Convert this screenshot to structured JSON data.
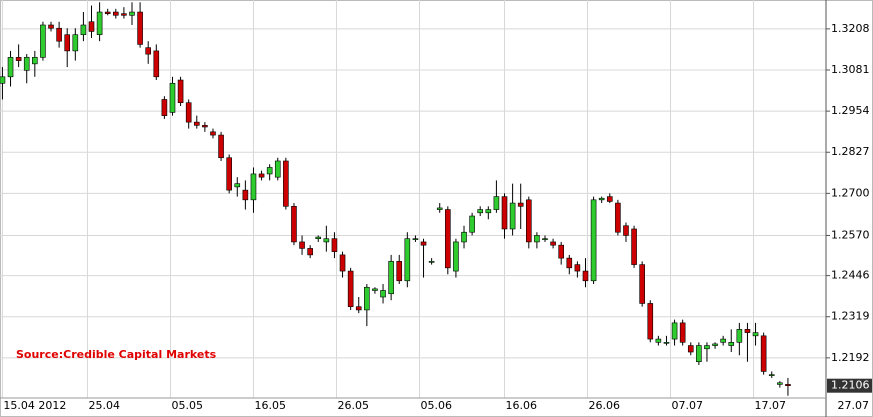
{
  "chart_data": {
    "type": "candlestick",
    "annotation": "Source:Credible Capital Markets",
    "up_color": "#2ecc2e",
    "down_color": "#cc0000",
    "grid": true,
    "ylim": [
      1.2068,
      1.3291
    ],
    "yticks": [
      1.2192,
      1.2319,
      1.2446,
      {
        "value": 1.257,
        "label": "1.2570"
      },
      {
        "value": 1.27,
        "label": "1.2700"
      },
      1.2827,
      1.2954,
      1.3081,
      1.3208
    ],
    "xlim": [
      -0.3,
      101.7
    ],
    "xticks": [
      {
        "value": 0,
        "label": "15.04 2012"
      },
      {
        "value": 10.5,
        "label": "25.04"
      },
      {
        "value": 20.75,
        "label": "05.05"
      },
      {
        "value": 31,
        "label": "16.05"
      },
      {
        "value": 41.25,
        "label": "26.05"
      },
      {
        "value": 51.5,
        "label": "05.06"
      },
      {
        "value": 62,
        "label": "16.06"
      },
      {
        "value": 72.25,
        "label": "26.06"
      },
      {
        "value": 82.5,
        "label": "07.07"
      },
      {
        "value": 92.75,
        "label": "17.07"
      },
      {
        "value": 103,
        "label": "27.07"
      }
    ],
    "open": [
      1.304,
      1.306,
      1.312,
      1.308,
      1.31,
      1.312,
      1.322,
      1.321,
      1.319,
      1.314,
      1.319,
      1.323,
      1.319,
      1.326,
      1.326,
      1.3255,
      1.325,
      1.326,
      1.315,
      1.314,
      1.299,
      1.295,
      1.305,
      1.298,
      1.292,
      1.291,
      1.289,
      1.288,
      1.281,
      1.272,
      1.271,
      1.268,
      1.276,
      1.276,
      1.275,
      1.28,
      1.266,
      1.255,
      1.253,
      1.256,
      1.255,
      1.256,
      1.251,
      1.246,
      1.235,
      1.234,
      1.24,
      1.238,
      1.239,
      1.249,
      1.243,
      1.256,
      1.255,
      1.249,
      1.265,
      1.265,
      1.246,
      1.255,
      1.258,
      1.264,
      1.264,
      1.265,
      1.269,
      1.259,
      1.267,
      1.268,
      1.255,
      1.256,
      1.255,
      1.254,
      1.25,
      1.248,
      1.246,
      1.243,
      1.268,
      1.269,
      1.267,
      1.26,
      1.259,
      1.248,
      1.236,
      1.224,
      1.224,
      1.225,
      1.23,
      1.223,
      1.218,
      1.222,
      1.223,
      1.224,
      1.223,
      1.224,
      1.228,
      1.226,
      1.226,
      1.214,
      1.211,
      1.211
    ],
    "high": [
      1.309,
      1.314,
      1.316,
      1.313,
      1.314,
      1.323,
      1.323,
      1.323,
      1.321,
      1.321,
      1.326,
      1.328,
      1.329,
      1.327,
      1.327,
      1.3275,
      1.329,
      1.329,
      1.317,
      1.316,
      1.3,
      1.306,
      1.306,
      1.299,
      1.294,
      1.292,
      1.29,
      1.289,
      1.282,
      1.275,
      1.274,
      1.278,
      1.277,
      1.279,
      1.281,
      1.281,
      1.267,
      1.257,
      1.254,
      1.257,
      1.26,
      1.258,
      1.252,
      1.247,
      1.238,
      1.242,
      1.241,
      1.242,
      1.251,
      1.251,
      1.258,
      1.257,
      1.256,
      1.25,
      1.267,
      1.266,
      1.256,
      1.26,
      1.264,
      1.266,
      1.266,
      1.274,
      1.27,
      1.273,
      1.273,
      1.269,
      1.258,
      1.257,
      1.256,
      1.255,
      1.251,
      1.249,
      1.25,
      1.269,
      1.269,
      1.27,
      1.268,
      1.261,
      1.26,
      1.249,
      1.237,
      1.226,
      1.226,
      1.231,
      1.231,
      1.224,
      1.224,
      1.224,
      1.224,
      1.226,
      1.228,
      1.23,
      1.23,
      1.23,
      1.227,
      1.215,
      1.212,
      1.213
    ],
    "low": [
      1.299,
      1.303,
      1.309,
      1.304,
      1.306,
      1.311,
      1.32,
      1.315,
      1.309,
      1.311,
      1.317,
      1.318,
      1.317,
      1.325,
      1.324,
      1.324,
      1.322,
      1.315,
      1.31,
      1.305,
      1.293,
      1.294,
      1.297,
      1.29,
      1.29,
      1.289,
      1.287,
      1.28,
      1.27,
      1.269,
      1.265,
      1.264,
      1.274,
      1.274,
      1.274,
      1.265,
      1.254,
      1.251,
      1.25,
      1.255,
      1.252,
      1.25,
      1.244,
      1.234,
      1.233,
      1.229,
      1.239,
      1.236,
      1.237,
      1.242,
      1.241,
      1.255,
      1.244,
      1.248,
      1.264,
      1.245,
      1.244,
      1.253,
      1.257,
      1.263,
      1.262,
      1.264,
      1.256,
      1.257,
      1.259,
      1.253,
      1.253,
      1.255,
      1.253,
      1.248,
      1.245,
      1.244,
      1.241,
      1.242,
      1.267,
      1.267,
      1.257,
      1.255,
      1.247,
      1.235,
      1.224,
      1.223,
      1.223,
      1.223,
      1.223,
      1.22,
      1.217,
      1.218,
      1.222,
      1.223,
      1.221,
      1.22,
      1.218,
      1.223,
      1.214,
      1.213,
      1.21,
      1.2075
    ],
    "close": [
      1.306,
      1.312,
      1.311,
      1.312,
      1.312,
      1.322,
      1.321,
      1.317,
      1.314,
      1.319,
      1.322,
      1.32,
      1.326,
      1.3255,
      1.325,
      1.325,
      1.326,
      1.316,
      1.313,
      1.306,
      1.294,
      1.304,
      1.298,
      1.292,
      1.291,
      1.2905,
      1.288,
      1.281,
      1.271,
      1.273,
      1.268,
      1.276,
      1.275,
      1.278,
      1.28,
      1.266,
      1.255,
      1.253,
      1.251,
      1.2565,
      1.256,
      1.252,
      1.246,
      1.235,
      1.234,
      1.241,
      1.2405,
      1.24,
      1.249,
      1.243,
      1.256,
      1.256,
      1.254,
      1.249,
      1.2655,
      1.247,
      1.255,
      1.258,
      1.263,
      1.265,
      1.265,
      1.269,
      1.259,
      1.267,
      1.266,
      1.255,
      1.257,
      1.256,
      1.254,
      1.25,
      1.247,
      1.246,
      1.243,
      1.268,
      1.2685,
      1.2675,
      1.258,
      1.257,
      1.248,
      1.236,
      1.225,
      1.225,
      1.224,
      1.23,
      1.224,
      1.221,
      1.223,
      1.223,
      1.2235,
      1.225,
      1.224,
      1.228,
      1.227,
      1.227,
      1.215,
      1.214,
      1.2115,
      1.2106
    ]
  }
}
